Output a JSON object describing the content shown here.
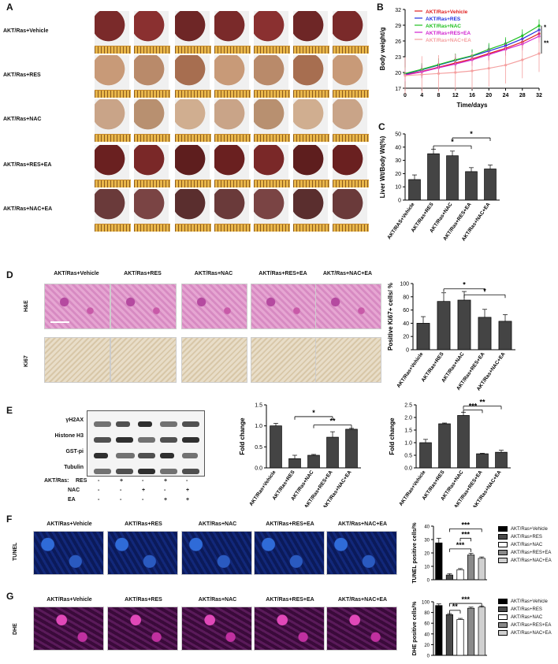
{
  "panels": {
    "A": "A",
    "B": "B",
    "C": "C",
    "D": "D",
    "E": "E",
    "F": "F",
    "G": "G"
  },
  "groups": [
    "AKT/Ras+Vehicle",
    "AKT/Ras+RES",
    "AKT/Ras+NAC",
    "AKT/Ras+RES+EA",
    "AKT/Ras+NAC+EA"
  ],
  "row_d_labels": {
    "he": "H&E",
    "ki67": "Ki67"
  },
  "row_f_label": "TUNEL",
  "row_g_label": "DHE",
  "blot": {
    "proteins": [
      "γH2AX",
      "Histone H3",
      "GST-pi",
      "Tubulin"
    ],
    "treat_header": "AKT/Ras:",
    "treat_rows": [
      {
        "name": "RES",
        "marks": [
          "-",
          "+",
          "-",
          "+",
          "-"
        ]
      },
      {
        "name": "NAC",
        "marks": [
          "-",
          "-",
          "+",
          "-",
          "+"
        ]
      },
      {
        "name": "EA",
        "marks": [
          "-",
          "-",
          "-",
          "+",
          "+"
        ]
      }
    ]
  },
  "colors": {
    "vehicle": "#000000",
    "res": "#4a4a4a",
    "nac": "#ffffff",
    "res_ea": "#8a8a8a",
    "nac_ea": "#d0d0d0"
  },
  "chart_data": [
    {
      "id": "B",
      "type": "line",
      "xlabel": "Time/days",
      "ylabel": "Body weight/g",
      "xlim": [
        0,
        32
      ],
      "ylim": [
        17,
        32
      ],
      "xticks": [
        0,
        4,
        8,
        12,
        16,
        20,
        24,
        28,
        32
      ],
      "yticks": [
        17,
        20,
        23,
        26,
        29,
        32
      ],
      "legend_position": "top-left",
      "series": [
        {
          "name": "AKT/Ras+Vehicle",
          "color": "#e02020",
          "values": [
            19.6,
            20.2,
            21.0,
            21.8,
            22.6,
            23.6,
            24.6,
            25.8,
            27.4
          ]
        },
        {
          "name": "AKT/Ras+RES",
          "color": "#2030e0",
          "values": [
            19.7,
            20.5,
            21.4,
            22.3,
            23.1,
            24.1,
            25.1,
            26.4,
            28.1
          ]
        },
        {
          "name": "AKT/Ras+NAC",
          "color": "#20c020",
          "values": [
            19.8,
            20.6,
            21.5,
            22.4,
            23.2,
            24.4,
            25.5,
            27.0,
            28.9
          ]
        },
        {
          "name": "AKT/Ras+RES+EA",
          "color": "#d020d0",
          "values": [
            19.5,
            20.1,
            20.9,
            21.6,
            22.4,
            23.4,
            24.4,
            25.4,
            26.9
          ]
        },
        {
          "name": "AKT/Ras+NAC+EA",
          "color": "#f4a0a0",
          "values": [
            19.4,
            19.6,
            19.8,
            20.0,
            20.3,
            20.8,
            21.4,
            22.4,
            23.6
          ]
        }
      ],
      "annotations": [
        "*",
        "**"
      ]
    },
    {
      "id": "C",
      "type": "bar",
      "ylabel": "Liver Wt/Body Wt(%)",
      "ylim": [
        0,
        50
      ],
      "yticks": [
        0,
        10,
        20,
        30,
        40,
        50
      ],
      "categories": [
        "AKT/RAS+Vehicle",
        "AKT/Ras+RES",
        "AKT/Ras+NAC",
        "AKT/Ras+RES+EA",
        "AKT/Ras+NAC+EA"
      ],
      "values": [
        15.5,
        35,
        33.5,
        21.5,
        23.5
      ],
      "errors": [
        3.5,
        3.5,
        3.5,
        3,
        3
      ],
      "annotations": [
        "*",
        "*"
      ]
    },
    {
      "id": "D",
      "type": "bar",
      "ylabel": "Positive Ki67+ cells/ %",
      "ylim": [
        0,
        100
      ],
      "yticks": [
        0,
        20,
        40,
        60,
        80,
        100
      ],
      "categories": [
        "AKT/Ras+Vehicle",
        "AKT/Ras+RES",
        "AKT/Ras+NAC",
        "AKT/Ras+RES+EA",
        "AKT/Ras+NAC+EA"
      ],
      "values": [
        40,
        73,
        75,
        49,
        43
      ],
      "errors": [
        10,
        13,
        13,
        12,
        10
      ],
      "annotations": [
        "*",
        "*"
      ]
    },
    {
      "id": "E1",
      "type": "bar",
      "ylabel": "Fold change",
      "ylim": [
        0,
        1.5
      ],
      "yticks": [
        0.0,
        0.5,
        1.0,
        1.5
      ],
      "categories": [
        "AKT/Ras+Vehicle",
        "AKT/Ras+RES",
        "AKT/Ras+NAC",
        "AKT/Ras+RES+EA",
        "AKT/Ras+NAC+EA"
      ],
      "values": [
        1.0,
        0.22,
        0.3,
        0.73,
        0.92
      ],
      "errors": [
        0.06,
        0.08,
        0.02,
        0.13,
        0.02
      ],
      "annotations": [
        "*",
        "**"
      ]
    },
    {
      "id": "E2",
      "type": "bar",
      "ylabel": "Fold change",
      "ylim": [
        0,
        2.5
      ],
      "yticks": [
        0.0,
        0.5,
        1.0,
        1.5,
        2.0,
        2.5
      ],
      "categories": [
        "AKT/Ras+Vehicle",
        "AKT/Ras+RES",
        "AKT/Ras+NAC",
        "AKT/Ras+RES+EA",
        "AKT/Ras+NAC+EA"
      ],
      "values": [
        1.0,
        1.75,
        2.08,
        0.56,
        0.62
      ],
      "errors": [
        0.13,
        0.03,
        0.13,
        0.02,
        0.08
      ],
      "annotations": [
        "***",
        "**"
      ]
    },
    {
      "id": "F",
      "type": "bar",
      "ylabel": "TUNEL positive cells/%",
      "ylim": [
        0,
        40
      ],
      "yticks": [
        0,
        10,
        20,
        30,
        40
      ],
      "categories": [
        "AKT/Ras+Vehicle",
        "AKT/Ras+RES",
        "AKT/Ras+NAC",
        "AKT/Ras+RES+EA",
        "AKT/Ras+NAC+EA"
      ],
      "values": [
        27.5,
        3.5,
        7.5,
        18.5,
        16
      ],
      "errors": [
        3.5,
        1,
        0.8,
        1.2,
        1
      ],
      "annotations": [
        "***",
        "***",
        "***"
      ]
    },
    {
      "id": "G",
      "type": "bar",
      "ylabel": "DHE positive cells/%",
      "ylim": [
        0,
        100
      ],
      "yticks": [
        0,
        20,
        40,
        60,
        80,
        100
      ],
      "categories": [
        "AKT/Ras+Vehicle",
        "AKT/Ras+RES",
        "AKT/Ras+NAC",
        "AKT/Ras+RES+EA",
        "AKT/Ras+NAC+EA"
      ],
      "values": [
        93,
        76,
        67,
        88,
        90
      ],
      "errors": [
        3,
        2,
        2,
        2,
        2
      ],
      "annotations": [
        "**",
        "***"
      ]
    }
  ]
}
